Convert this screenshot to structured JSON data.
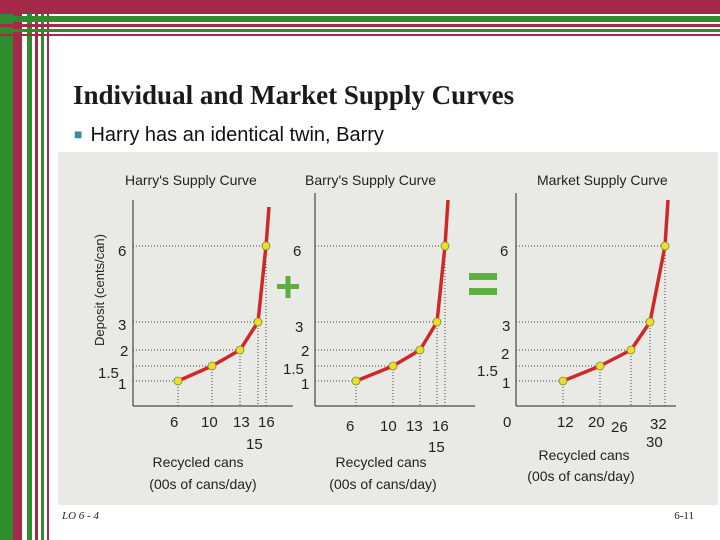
{
  "slide": {
    "title": "Individual and Market Supply Curves",
    "bullet": "Harry has an identical twin, Barry",
    "footer_left": "LO 6 - 4",
    "footer_right": "6-11"
  },
  "colors": {
    "green_stripe": "#2e8b2e",
    "red_stripe": "#a52a4a",
    "curve": "#d02828",
    "point": "#e8e030",
    "plus_sign": "#5db040",
    "equals_sign": "#5db040",
    "panel": "#e9e9e6"
  },
  "chart_data": [
    {
      "type": "line",
      "title": "Harry's Supply Curve",
      "ylabel": "Deposit (cents/can)",
      "xlabel": [
        "Recycled cans",
        "(00s of cans/day)"
      ],
      "y_ticks": [
        "6",
        "3",
        "2",
        "1.5",
        "1"
      ],
      "x_ticks": [
        "6",
        "10",
        "13",
        "16",
        "15"
      ],
      "series": [
        {
          "name": "Harry",
          "x": [
            6,
            10,
            13,
            15,
            16
          ],
          "y": [
            1,
            1.5,
            2,
            3,
            6
          ]
        }
      ]
    },
    {
      "type": "line",
      "title": "Barry's Supply Curve",
      "ylabel": "",
      "xlabel": [
        "Recycled cans",
        "(00s of cans/day)"
      ],
      "y_ticks": [
        "6",
        "3",
        "2",
        "1.5",
        "1"
      ],
      "x_ticks": [
        "6",
        "10",
        "13",
        "16",
        "15"
      ],
      "series": [
        {
          "name": "Barry",
          "x": [
            6,
            10,
            13,
            15,
            16
          ],
          "y": [
            1,
            1.5,
            2,
            3,
            6
          ]
        }
      ]
    },
    {
      "type": "line",
      "title": "Market Supply Curve",
      "ylabel": "",
      "xlabel": [
        "Recycled cans",
        "(00s of cans/day)"
      ],
      "y_ticks": [
        "6",
        "3",
        "2",
        "1.5",
        "1"
      ],
      "x_ticks": [
        "0",
        "12",
        "20",
        "26",
        "32",
        "30"
      ],
      "series": [
        {
          "name": "Market",
          "x": [
            12,
            20,
            26,
            30,
            32
          ],
          "y": [
            1,
            1.5,
            2,
            3,
            6
          ]
        }
      ]
    }
  ]
}
